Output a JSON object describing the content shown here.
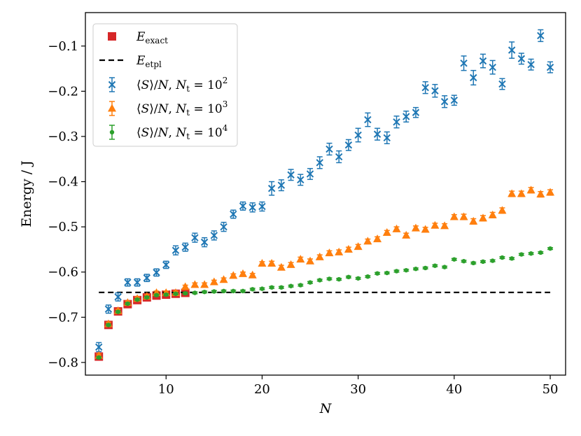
{
  "chart_data": {
    "type": "scatter",
    "xlabel": "N",
    "ylabel": "Energy / J",
    "xlim": [
      1.6,
      51.6
    ],
    "ylim": [
      -0.828,
      -0.026
    ],
    "xticks": [
      10,
      20,
      30,
      40,
      50
    ],
    "yticks": [
      -0.8,
      -0.7,
      -0.6,
      -0.5,
      -0.4,
      -0.3,
      -0.2,
      -0.1
    ],
    "xtick_labels": [
      "10",
      "20",
      "30",
      "40",
      "50"
    ],
    "ytick_labels": [
      "−0.8",
      "−0.7",
      "−0.6",
      "−0.5",
      "−0.4",
      "−0.3",
      "−0.2",
      "−0.1"
    ],
    "grid": false,
    "legend_placement": "top-left",
    "legend": [
      {
        "key": "exact",
        "label": "E_exact",
        "marker": "square",
        "color": "#d62728"
      },
      {
        "key": "etpl",
        "label": "E_etpl",
        "marker": "dashed-line",
        "color": "#000000"
      },
      {
        "key": "nt2",
        "label": "⟨S⟩/N, N_t = 10^2",
        "marker": "x",
        "color": "#1f77b4"
      },
      {
        "key": "nt3",
        "label": "⟨S⟩/N, N_t = 10^3",
        "marker": "triangle",
        "color": "#ff7f0e"
      },
      {
        "key": "nt4",
        "label": "⟨S⟩/N, N_t = 10^4",
        "marker": "dot",
        "color": "#2ca02c"
      }
    ],
    "series": [
      {
        "key": "exact",
        "name": "E_exact",
        "color": "#d62728",
        "marker": "square",
        "x": [
          3,
          4,
          5,
          6,
          7,
          8,
          9,
          10,
          11,
          12
        ],
        "y": [
          -0.787,
          -0.717,
          -0.687,
          -0.671,
          -0.662,
          -0.656,
          -0.652,
          -0.65,
          -0.648,
          -0.646
        ]
      },
      {
        "key": "etpl",
        "name": "E_etpl",
        "color": "#000000",
        "style": "dashed",
        "x": [
          3,
          50
        ],
        "y": [
          -0.645,
          -0.645
        ]
      },
      {
        "key": "nt2",
        "name": "⟨S⟩/N, N_t = 10^2",
        "color": "#1f77b4",
        "marker": "x",
        "x": [
          3,
          4,
          5,
          6,
          7,
          8,
          9,
          10,
          11,
          12,
          13,
          14,
          15,
          16,
          17,
          18,
          19,
          20,
          21,
          22,
          23,
          24,
          25,
          26,
          27,
          28,
          29,
          30,
          31,
          32,
          33,
          34,
          35,
          36,
          37,
          38,
          39,
          40,
          41,
          42,
          43,
          44,
          45,
          46,
          47,
          48,
          49,
          50
        ],
        "y": [
          -0.766,
          -0.682,
          -0.655,
          -0.623,
          -0.623,
          -0.613,
          -0.601,
          -0.584,
          -0.552,
          -0.545,
          -0.524,
          -0.534,
          -0.519,
          -0.5,
          -0.472,
          -0.454,
          -0.457,
          -0.455,
          -0.415,
          -0.408,
          -0.385,
          -0.396,
          -0.383,
          -0.358,
          -0.328,
          -0.345,
          -0.319,
          -0.297,
          -0.263,
          -0.295,
          -0.303,
          -0.268,
          -0.256,
          -0.247,
          -0.192,
          -0.199,
          -0.223,
          -0.22,
          -0.138,
          -0.17,
          -0.133,
          -0.147,
          -0.184,
          -0.109,
          -0.128,
          -0.141,
          -0.077,
          -0.147
        ],
        "yerr": [
          0.01,
          0.009,
          0.009,
          0.008,
          0.008,
          0.008,
          0.008,
          0.008,
          0.01,
          0.009,
          0.01,
          0.01,
          0.01,
          0.01,
          0.009,
          0.009,
          0.01,
          0.01,
          0.015,
          0.012,
          0.012,
          0.012,
          0.012,
          0.013,
          0.013,
          0.013,
          0.012,
          0.015,
          0.015,
          0.013,
          0.013,
          0.013,
          0.012,
          0.011,
          0.013,
          0.014,
          0.013,
          0.011,
          0.016,
          0.016,
          0.015,
          0.015,
          0.012,
          0.018,
          0.012,
          0.012,
          0.013,
          0.012
        ]
      },
      {
        "key": "nt3",
        "name": "⟨S⟩/N, N_t = 10^3",
        "color": "#ff7f0e",
        "marker": "triangle",
        "x": [
          3,
          4,
          5,
          6,
          7,
          8,
          9,
          10,
          11,
          12,
          13,
          14,
          15,
          16,
          17,
          18,
          19,
          20,
          21,
          22,
          23,
          24,
          25,
          26,
          27,
          28,
          29,
          30,
          31,
          32,
          33,
          34,
          35,
          36,
          37,
          38,
          39,
          40,
          41,
          42,
          43,
          44,
          45,
          46,
          47,
          48,
          49,
          50
        ],
        "y": [
          -0.785,
          -0.715,
          -0.686,
          -0.668,
          -0.659,
          -0.654,
          -0.646,
          -0.646,
          -0.646,
          -0.633,
          -0.628,
          -0.628,
          -0.622,
          -0.617,
          -0.608,
          -0.604,
          -0.607,
          -0.581,
          -0.581,
          -0.59,
          -0.584,
          -0.572,
          -0.576,
          -0.567,
          -0.558,
          -0.556,
          -0.55,
          -0.544,
          -0.532,
          -0.527,
          -0.513,
          -0.505,
          -0.519,
          -0.503,
          -0.506,
          -0.497,
          -0.498,
          -0.478,
          -0.478,
          -0.488,
          -0.481,
          -0.474,
          -0.464,
          -0.427,
          -0.427,
          -0.419,
          -0.428,
          -0.424
        ],
        "yerr": [
          0.004,
          0.004,
          0.004,
          0.004,
          0.004,
          0.004,
          0.004,
          0.004,
          0.004,
          0.004,
          0.004,
          0.004,
          0.004,
          0.004,
          0.004,
          0.004,
          0.004,
          0.004,
          0.005,
          0.005,
          0.005,
          0.005,
          0.005,
          0.005,
          0.005,
          0.005,
          0.005,
          0.005,
          0.005,
          0.005,
          0.005,
          0.005,
          0.005,
          0.005,
          0.005,
          0.005,
          0.005,
          0.005,
          0.006,
          0.006,
          0.006,
          0.006,
          0.006,
          0.006,
          0.006,
          0.006,
          0.006,
          0.006
        ]
      },
      {
        "key": "nt4",
        "name": "⟨S⟩/N, N_t = 10^4",
        "color": "#2ca02c",
        "marker": "dot",
        "x": [
          3,
          4,
          5,
          6,
          7,
          8,
          9,
          10,
          11,
          12,
          13,
          14,
          15,
          16,
          17,
          18,
          19,
          20,
          21,
          22,
          23,
          24,
          25,
          26,
          27,
          28,
          29,
          30,
          31,
          32,
          33,
          34,
          35,
          36,
          37,
          38,
          39,
          40,
          41,
          42,
          43,
          44,
          45,
          46,
          47,
          48,
          49,
          50
        ],
        "y": [
          -0.789,
          -0.717,
          -0.688,
          -0.67,
          -0.661,
          -0.656,
          -0.651,
          -0.65,
          -0.648,
          -0.647,
          -0.646,
          -0.644,
          -0.643,
          -0.642,
          -0.642,
          -0.642,
          -0.638,
          -0.637,
          -0.634,
          -0.634,
          -0.631,
          -0.629,
          -0.623,
          -0.618,
          -0.615,
          -0.616,
          -0.611,
          -0.614,
          -0.61,
          -0.603,
          -0.602,
          -0.598,
          -0.596,
          -0.593,
          -0.591,
          -0.586,
          -0.589,
          -0.572,
          -0.576,
          -0.58,
          -0.577,
          -0.575,
          -0.568,
          -0.57,
          -0.561,
          -0.559,
          -0.557,
          -0.548
        ],
        "yerr": [
          0.002,
          0.002,
          0.002,
          0.002,
          0.002,
          0.002,
          0.002,
          0.002,
          0.002,
          0.002,
          0.002,
          0.002,
          0.002,
          0.002,
          0.002,
          0.002,
          0.002,
          0.002,
          0.002,
          0.002,
          0.002,
          0.002,
          0.002,
          0.002,
          0.002,
          0.002,
          0.002,
          0.002,
          0.002,
          0.002,
          0.002,
          0.002,
          0.002,
          0.002,
          0.002,
          0.002,
          0.002,
          0.002,
          0.002,
          0.002,
          0.002,
          0.002,
          0.002,
          0.002,
          0.002,
          0.002,
          0.002,
          0.002
        ]
      }
    ]
  }
}
